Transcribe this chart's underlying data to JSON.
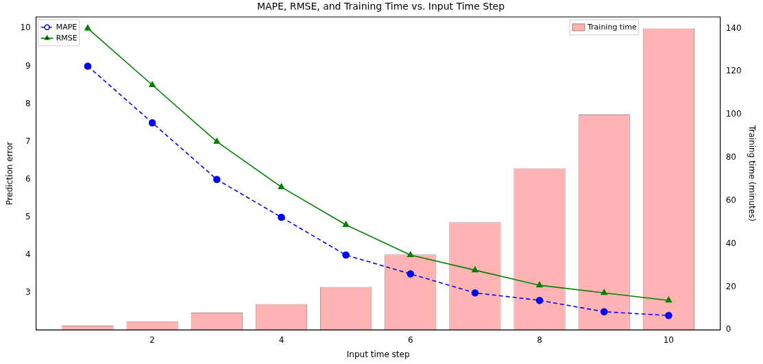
{
  "chart_data": {
    "type": "line",
    "title": "MAPE, RMSE, and Training Time vs. Input Time Step",
    "xlabel": "Input time step",
    "ylabel": "Prediction error",
    "y2label": "Training time (minutes)",
    "x": [
      1,
      2,
      3,
      4,
      5,
      6,
      7,
      8,
      9,
      10
    ],
    "series": [
      {
        "name": "MAPE",
        "color": "#0000ff",
        "marker": "circle",
        "line_style": "dashed",
        "values": [
          9,
          7.5,
          6,
          5,
          4,
          3.5,
          3,
          2.8,
          2.5,
          2.4
        ]
      },
      {
        "name": "RMSE",
        "color": "#008000",
        "marker": "triangle",
        "line_style": "solid",
        "values": [
          10,
          8.5,
          7,
          5.8,
          4.8,
          4,
          3.6,
          3.2,
          3,
          2.8
        ]
      },
      {
        "name": "Training time",
        "type": "bar",
        "axis": "y2",
        "color": "#ffb3b3",
        "values": [
          2,
          4,
          8,
          12,
          20,
          35,
          50,
          75,
          100,
          140
        ]
      }
    ],
    "xlim": [
      0.2,
      10.8
    ],
    "xticks": [
      2,
      4,
      6,
      8,
      10
    ],
    "ylim": [
      2.02,
      10.3
    ],
    "yticks": [
      3,
      4,
      5,
      6,
      7,
      8,
      9,
      10
    ],
    "y2lim": [
      0,
      145.3
    ],
    "y2ticks": [
      0,
      20,
      40,
      60,
      80,
      100,
      120,
      140
    ],
    "grid": false,
    "legend": "top"
  }
}
